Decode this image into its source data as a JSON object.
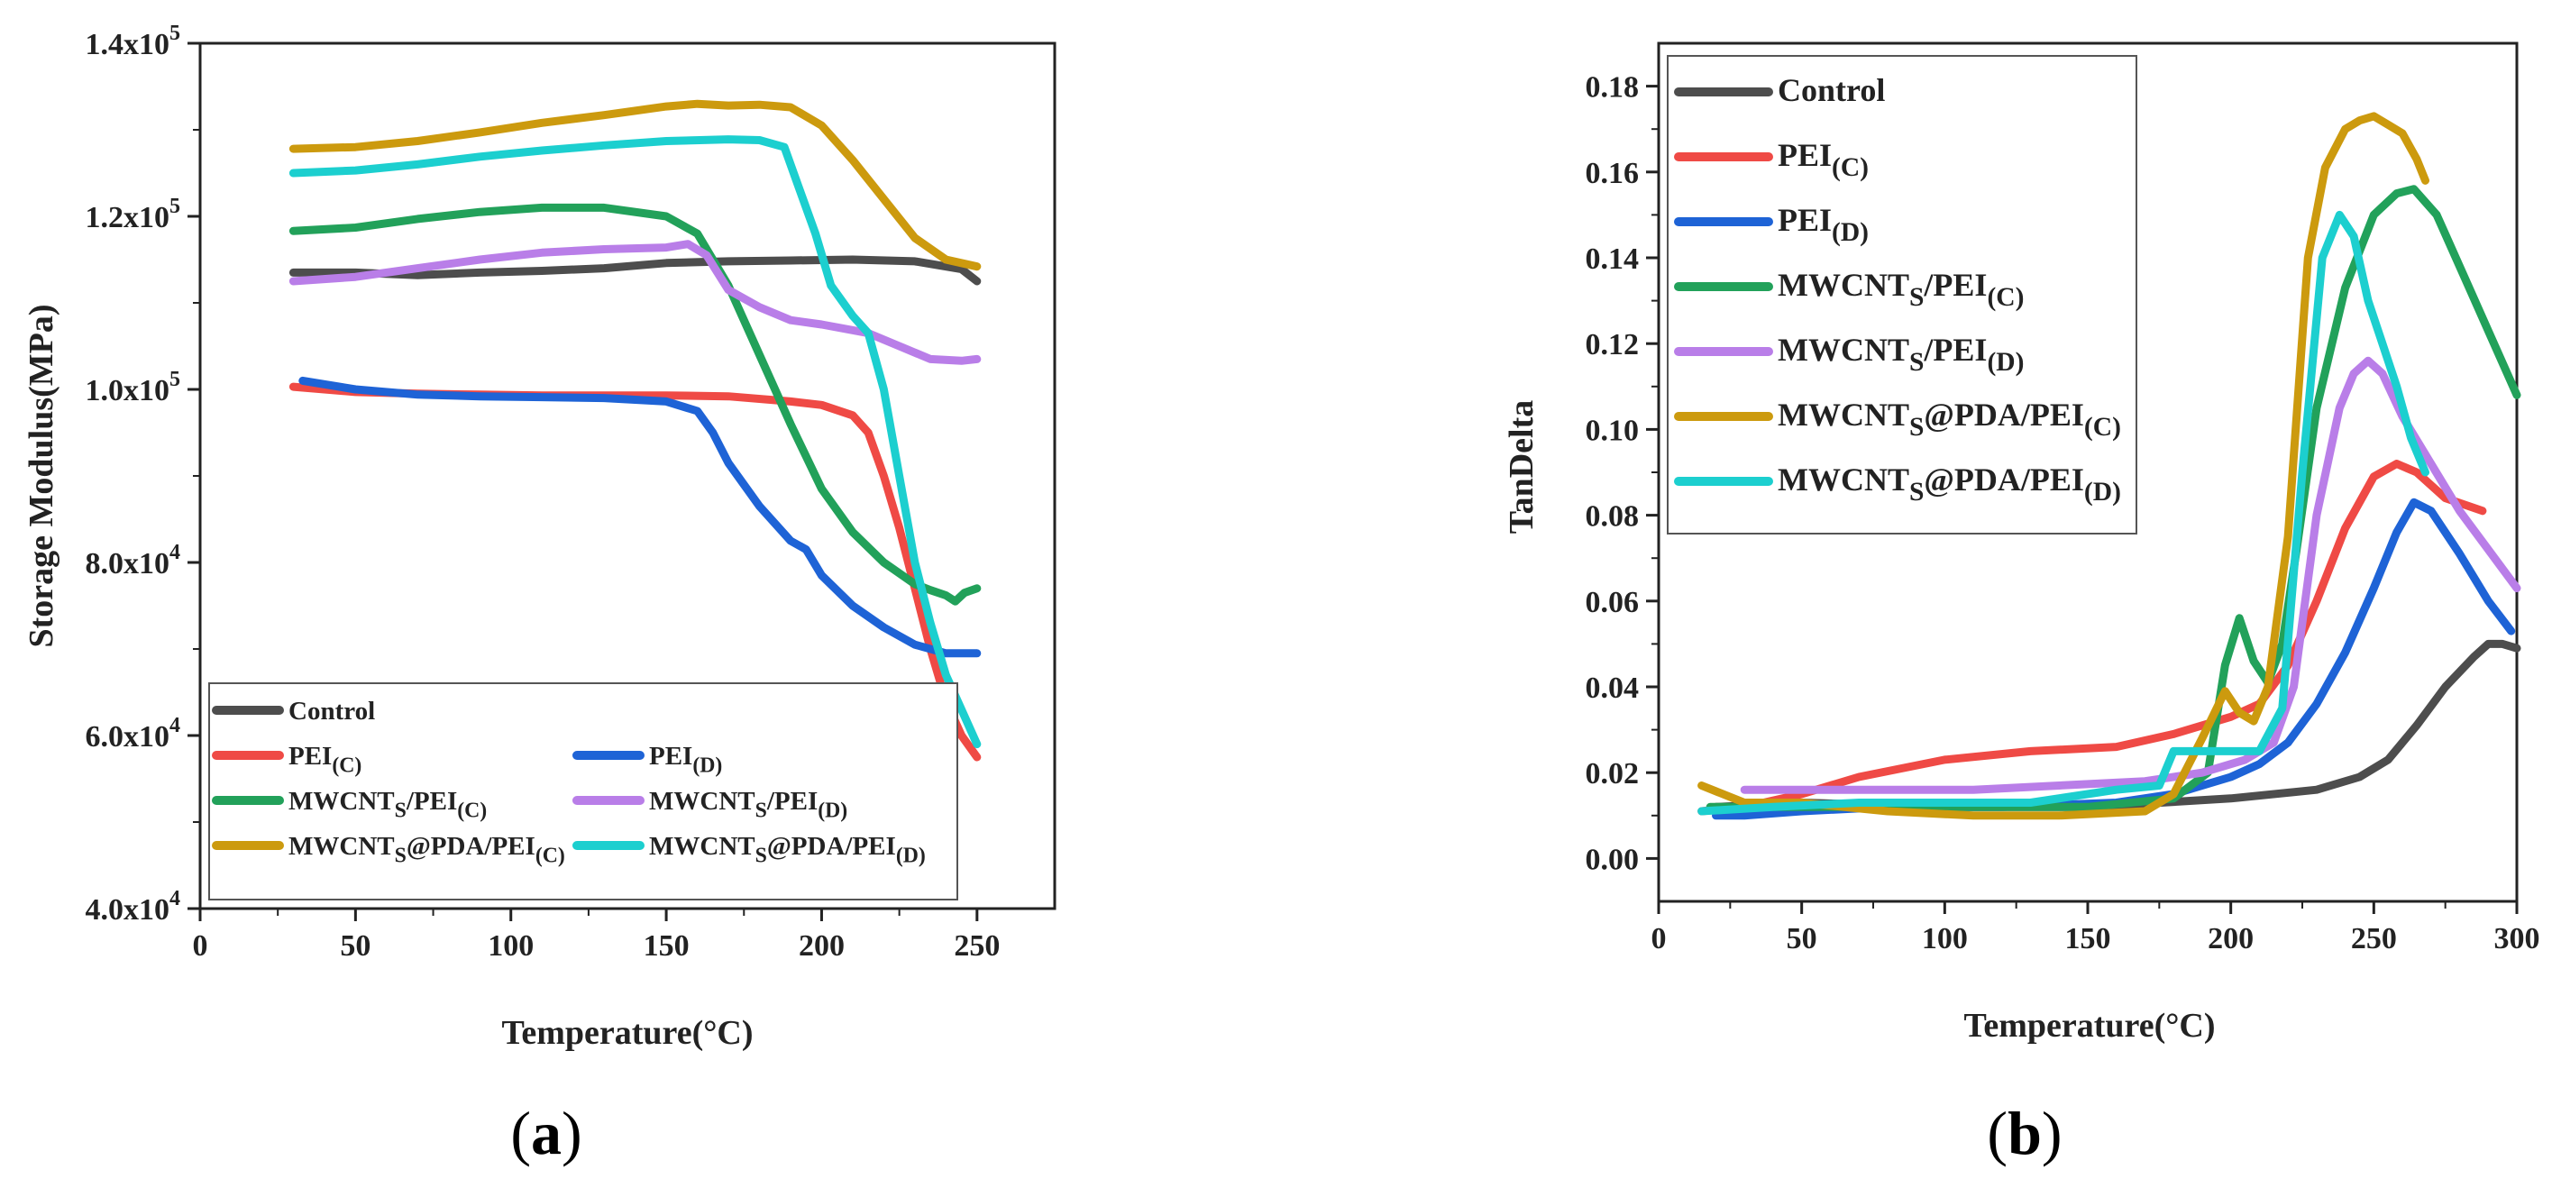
{
  "chart_data": [
    {
      "type": "line",
      "panel_label": "a",
      "xlabel": "Temperature(°C)",
      "ylabel": "Storage Modulus(MPa)",
      "xlim": [
        0,
        275
      ],
      "ylim": [
        40000,
        140000
      ],
      "xticks": [
        "0",
        "50",
        "100",
        "150",
        "200",
        "250"
      ],
      "yticks": [
        {
          "mant": "4.0x10",
          "exp": "4"
        },
        {
          "mant": "6.0x10",
          "exp": "4"
        },
        {
          "mant": "8.0x10",
          "exp": "4"
        },
        {
          "mant": "1.0x10",
          "exp": "5"
        },
        {
          "mant": "1.2x10",
          "exp": "5"
        },
        {
          "mant": "1.4x10",
          "exp": "5"
        }
      ],
      "grid": false,
      "legend_position": "bottom",
      "series": [
        {
          "name": "Control",
          "color": "#4d4d4d",
          "x": [
            30,
            50,
            70,
            90,
            110,
            130,
            150,
            170,
            190,
            210,
            230,
            245,
            250
          ],
          "y": [
            113500,
            113500,
            113200,
            113500,
            113700,
            114000,
            114600,
            114800,
            114900,
            115000,
            114800,
            113900,
            112500
          ]
        },
        {
          "name": "PEI(C)",
          "color": "#ef4a45",
          "x": [
            30,
            50,
            70,
            90,
            110,
            130,
            150,
            170,
            190,
            200,
            210,
            215,
            220,
            225,
            230,
            235,
            240,
            245,
            250
          ],
          "y": [
            100300,
            99700,
            99500,
            99400,
            99300,
            99300,
            99300,
            99200,
            98600,
            98200,
            97000,
            95000,
            90000,
            84000,
            77000,
            70000,
            64000,
            60000,
            57500
          ]
        },
        {
          "name": "PEI(D)",
          "color": "#1e63d6",
          "x": [
            33,
            50,
            70,
            90,
            110,
            130,
            150,
            160,
            165,
            170,
            180,
            190,
            195,
            200,
            210,
            220,
            230,
            240,
            250
          ],
          "y": [
            101000,
            100000,
            99400,
            99200,
            99100,
            99000,
            98600,
            97500,
            95000,
            91500,
            86500,
            82500,
            81500,
            78500,
            75000,
            72500,
            70500,
            69500,
            69500
          ]
        },
        {
          "name": "MWCNTS/PEI(C)",
          "color": "#22a15a",
          "x": [
            30,
            50,
            70,
            90,
            110,
            130,
            150,
            160,
            170,
            180,
            190,
            200,
            210,
            220,
            230,
            235,
            240,
            243,
            246,
            250
          ],
          "y": [
            118300,
            118700,
            119700,
            120500,
            121000,
            121000,
            120000,
            118000,
            112000,
            104000,
            96000,
            88500,
            83500,
            80000,
            77500,
            76800,
            76200,
            75500,
            76500,
            77000
          ]
        },
        {
          "name": "MWCNTS/PEI(D)",
          "color": "#b97ee8",
          "x": [
            30,
            50,
            70,
            90,
            110,
            130,
            150,
            157,
            163,
            170,
            180,
            190,
            200,
            215,
            225,
            235,
            245,
            250
          ],
          "y": [
            112500,
            113000,
            114000,
            115000,
            115800,
            116200,
            116400,
            116800,
            115500,
            111500,
            109500,
            108000,
            107500,
            106500,
            105000,
            103500,
            103300,
            103500
          ]
        },
        {
          "name": "MWCNTS@PDA/PEI(C)",
          "color": "#cc9a0e",
          "x": [
            30,
            50,
            70,
            90,
            110,
            130,
            150,
            160,
            170,
            180,
            190,
            200,
            210,
            220,
            230,
            240,
            250
          ],
          "y": [
            127800,
            128000,
            128700,
            129700,
            130800,
            131700,
            132700,
            133000,
            132800,
            132900,
            132600,
            130500,
            126500,
            122000,
            117500,
            115000,
            114200
          ]
        },
        {
          "name": "MWCNTS@PDA/PEI(D)",
          "color": "#1ccfcf",
          "x": [
            30,
            50,
            70,
            90,
            110,
            130,
            150,
            170,
            180,
            188,
            193,
            198,
            203,
            210,
            215,
            220,
            225,
            230,
            235,
            240,
            245,
            250
          ],
          "y": [
            125000,
            125300,
            126000,
            126900,
            127600,
            128200,
            128700,
            128900,
            128800,
            128000,
            123000,
            118000,
            112000,
            108500,
            106500,
            100000,
            90000,
            80000,
            73000,
            67000,
            63000,
            59000
          ]
        }
      ],
      "legend": [
        {
          "base": "Control",
          "sub1": "",
          "mid": "",
          "sub2": ""
        },
        {
          "base": "PEI",
          "sub1": "(C)",
          "mid": "",
          "sub2": ""
        },
        {
          "base": "PEI",
          "sub1": "(D)",
          "mid": "",
          "sub2": ""
        },
        {
          "base": "MWCNT",
          "sub1": "S",
          "mid": "/PEI",
          "sub2": "(C)"
        },
        {
          "base": "MWCNT",
          "sub1": "S",
          "mid": "/PEI",
          "sub2": "(D)"
        },
        {
          "base": "MWCNT",
          "sub1": "S",
          "mid": "@PDA/PEI",
          "sub2": "(C)"
        },
        {
          "base": "MWCNT",
          "sub1": "S",
          "mid": "@PDA/PEI",
          "sub2": "(D)"
        }
      ]
    },
    {
      "type": "line",
      "panel_label": "b",
      "xlabel": "Temperature(°C)",
      "ylabel": "TanDelta",
      "xlim": [
        0,
        300
      ],
      "ylim": [
        -0.01,
        0.19
      ],
      "xticks": [
        "0",
        "50",
        "100",
        "150",
        "200",
        "250",
        "300"
      ],
      "yticks": [
        "0.00",
        "0.02",
        "0.04",
        "0.06",
        "0.08",
        "0.10",
        "0.12",
        "0.14",
        "0.16",
        "0.18"
      ],
      "grid": false,
      "legend_position": "top-left",
      "series": [
        {
          "name": "Control",
          "color": "#4d4d4d",
          "x": [
            20,
            50,
            100,
            150,
            200,
            230,
            245,
            255,
            265,
            275,
            285,
            290,
            295,
            300
          ],
          "y": [
            0.012,
            0.013,
            0.012,
            0.012,
            0.014,
            0.016,
            0.019,
            0.023,
            0.031,
            0.04,
            0.047,
            0.05,
            0.05,
            0.049
          ]
        },
        {
          "name": "PEI(C)",
          "color": "#ef4a45",
          "x": [
            15,
            30,
            50,
            70,
            100,
            130,
            160,
            180,
            200,
            210,
            220,
            230,
            240,
            250,
            258,
            265,
            275,
            288
          ],
          "y": [
            0.011,
            0.012,
            0.015,
            0.019,
            0.023,
            0.025,
            0.026,
            0.029,
            0.033,
            0.036,
            0.045,
            0.06,
            0.077,
            0.089,
            0.092,
            0.09,
            0.084,
            0.081
          ]
        },
        {
          "name": "PEI(D)",
          "color": "#1e63d6",
          "x": [
            20,
            30,
            50,
            80,
            120,
            160,
            180,
            200,
            210,
            220,
            230,
            240,
            250,
            258,
            264,
            270,
            280,
            290,
            298
          ],
          "y": [
            0.01,
            0.01,
            0.011,
            0.012,
            0.012,
            0.013,
            0.015,
            0.019,
            0.022,
            0.027,
            0.036,
            0.048,
            0.063,
            0.076,
            0.083,
            0.081,
            0.071,
            0.06,
            0.053
          ]
        },
        {
          "name": "MWCNTS/PEI(C)",
          "color": "#22a15a",
          "x": [
            18,
            50,
            100,
            150,
            180,
            192,
            198,
            203,
            208,
            213,
            218,
            223,
            230,
            240,
            250,
            258,
            264,
            272,
            282,
            292,
            300
          ],
          "y": [
            0.012,
            0.012,
            0.012,
            0.012,
            0.014,
            0.02,
            0.045,
            0.056,
            0.046,
            0.041,
            0.05,
            0.072,
            0.105,
            0.133,
            0.15,
            0.155,
            0.156,
            0.15,
            0.135,
            0.12,
            0.108
          ]
        },
        {
          "name": "MWCNTS/PEI(D)",
          "color": "#b97ee8",
          "x": [
            30,
            50,
            80,
            110,
            140,
            170,
            190,
            205,
            215,
            222,
            230,
            238,
            243,
            248,
            253,
            260,
            270,
            280,
            290,
            300
          ],
          "y": [
            0.016,
            0.016,
            0.016,
            0.016,
            0.017,
            0.018,
            0.02,
            0.023,
            0.027,
            0.04,
            0.08,
            0.105,
            0.113,
            0.116,
            0.113,
            0.103,
            0.092,
            0.081,
            0.072,
            0.063
          ]
        },
        {
          "name": "MWCNTS@PDA/PEI(C)",
          "color": "#cc9a0e",
          "x": [
            15,
            30,
            50,
            80,
            110,
            140,
            170,
            180,
            190,
            198,
            203,
            208,
            213,
            220,
            227,
            233,
            240,
            245,
            250,
            255,
            260,
            265,
            268
          ],
          "y": [
            0.017,
            0.013,
            0.013,
            0.011,
            0.01,
            0.01,
            0.011,
            0.015,
            0.028,
            0.039,
            0.034,
            0.032,
            0.04,
            0.075,
            0.14,
            0.161,
            0.17,
            0.172,
            0.173,
            0.171,
            0.169,
            0.163,
            0.158
          ]
        },
        {
          "name": "MWCNTS@PDA/PEI(D)",
          "color": "#1ccfcf",
          "x": [
            15,
            40,
            70,
            100,
            130,
            160,
            175,
            180,
            190,
            200,
            210,
            218,
            225,
            232,
            238,
            243,
            248,
            253,
            258,
            263,
            268
          ],
          "y": [
            0.011,
            0.012,
            0.013,
            0.013,
            0.013,
            0.016,
            0.017,
            0.025,
            0.025,
            0.025,
            0.025,
            0.035,
            0.09,
            0.14,
            0.15,
            0.145,
            0.13,
            0.12,
            0.11,
            0.098,
            0.09
          ]
        }
      ],
      "legend": [
        {
          "base": "Control",
          "sub1": "",
          "mid": "",
          "sub2": ""
        },
        {
          "base": "PEI",
          "sub1": "(C)",
          "mid": "",
          "sub2": ""
        },
        {
          "base": "PEI",
          "sub1": "(D)",
          "mid": "",
          "sub2": ""
        },
        {
          "base": "MWCNT",
          "sub1": "S",
          "mid": "/PEI",
          "sub2": "(C)"
        },
        {
          "base": "MWCNT",
          "sub1": "S",
          "mid": "/PEI",
          "sub2": "(D)"
        },
        {
          "base": "MWCNT",
          "sub1": "S",
          "mid": "@PDA/PEI",
          "sub2": "(C)"
        },
        {
          "base": "MWCNT",
          "sub1": "S",
          "mid": "@PDA/PEI",
          "sub2": "(D)"
        }
      ]
    }
  ]
}
